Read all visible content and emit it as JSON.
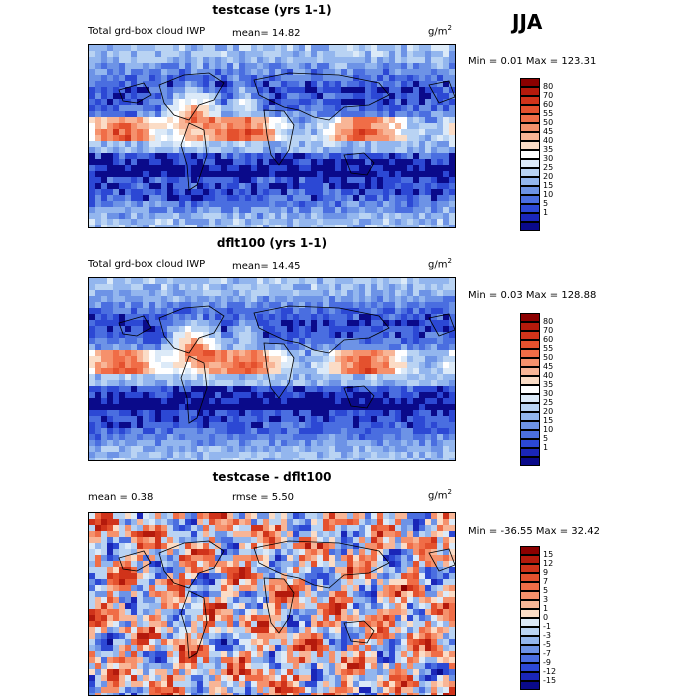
{
  "season": "JJA",
  "panels": [
    {
      "title": "testcase (yrs 1-1)",
      "left_text": "Total grd-box cloud IWP",
      "mean_text": "mean=  14.82",
      "units": "g/m",
      "units_exp": "2",
      "stats": "Min =   0.01  Max = 123.31",
      "colorbar": {
        "labels": [
          "80",
          "70",
          "60",
          "55",
          "50",
          "45",
          "40",
          "35",
          "30",
          "25",
          "20",
          "15",
          "10",
          "5",
          "1"
        ],
        "colors": [
          "#8b0000",
          "#b41a0c",
          "#d0331a",
          "#e4512e",
          "#f06d47",
          "#f5916c",
          "#f8b596",
          "#fbdcc6",
          "#ffffff",
          "#dceaf8",
          "#b9d3f3",
          "#93b6ee",
          "#6d93e6",
          "#4a6ee0",
          "#2c48d4",
          "#1a26b8",
          "#0a0a8a"
        ]
      },
      "field": {
        "base": 14.82,
        "variant": 0
      }
    },
    {
      "title": "dflt100 (yrs 1-1)",
      "left_text": "Total grd-box cloud IWP",
      "mean_text": "mean=  14.45",
      "units": "g/m",
      "units_exp": "2",
      "stats": "Min =   0.03  Max = 128.88",
      "colorbar": {
        "labels": [
          "80",
          "70",
          "60",
          "55",
          "50",
          "45",
          "40",
          "35",
          "30",
          "25",
          "20",
          "15",
          "10",
          "5",
          "1"
        ],
        "colors": [
          "#8b0000",
          "#b41a0c",
          "#d0331a",
          "#e4512e",
          "#f06d47",
          "#f5916c",
          "#f8b596",
          "#fbdcc6",
          "#ffffff",
          "#dceaf8",
          "#b9d3f3",
          "#93b6ee",
          "#6d93e6",
          "#4a6ee0",
          "#2c48d4",
          "#1a26b8",
          "#0a0a8a"
        ]
      },
      "field": {
        "base": 14.45,
        "variant": 1
      }
    },
    {
      "title": "testcase - dflt100",
      "left_text": "mean =    0.38",
      "mean_text": "rmse =    5.50",
      "units": "g/m",
      "units_exp": "2",
      "stats": "Min = -36.55  Max =  32.42",
      "colorbar": {
        "labels": [
          "15",
          "12",
          "9",
          "7",
          "5",
          "3",
          "1",
          "0",
          "-1",
          "-3",
          "-5",
          "-7",
          "-9",
          "-12",
          "-15"
        ],
        "colors": [
          "#8b0000",
          "#b41a0c",
          "#d0331a",
          "#e4512e",
          "#f06d47",
          "#f5916c",
          "#f8b596",
          "#fbdcc6",
          "#dceaf8",
          "#b9d3f3",
          "#93b6ee",
          "#6d93e6",
          "#4a6ee0",
          "#2c48d4",
          "#1a26b8",
          "#0a0a8a"
        ]
      },
      "field": {
        "base": 0,
        "variant": 2
      }
    }
  ]
}
